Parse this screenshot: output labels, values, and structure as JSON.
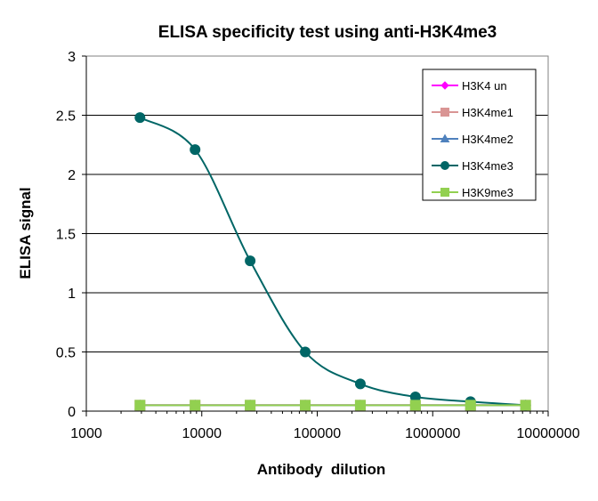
{
  "chart_data": {
    "type": "line",
    "title": "ELISA specificity test using anti-H3K4me3",
    "xlabel": "Antibody  dilution",
    "ylabel": "ELISA signal",
    "x_scale": "log",
    "xlim": [
      1000,
      10000000
    ],
    "ylim": [
      0,
      3
    ],
    "x_ticks": [
      "1000",
      "10000",
      "100000",
      "1000000",
      "10000000"
    ],
    "y_ticks": [
      "0",
      "0.5",
      "1",
      "1.5",
      "2",
      "2.5",
      "3"
    ],
    "grid": "horizontal",
    "legend_position": "top-right",
    "x": [
      2916,
      8748,
      26244,
      78732,
      236196,
      708588,
      2125764,
      6377292
    ],
    "series": [
      {
        "name": "H3K4 un",
        "color": "#ff00ff",
        "marker": "diamond",
        "values": [
          0.05,
          0.05,
          0.05,
          0.05,
          0.05,
          0.05,
          0.05,
          0.05
        ]
      },
      {
        "name": "H3K4me1",
        "color": "#d99594",
        "marker": "square",
        "values": [
          0.05,
          0.05,
          0.05,
          0.05,
          0.05,
          0.05,
          0.05,
          0.05
        ]
      },
      {
        "name": "H3K4me2",
        "color": "#4f81bd",
        "marker": "triangle",
        "values": [
          0.05,
          0.05,
          0.05,
          0.05,
          0.05,
          0.05,
          0.05,
          0.05
        ]
      },
      {
        "name": "H3K4me3",
        "color": "#006666",
        "marker": "circle",
        "values": [
          2.48,
          2.21,
          1.27,
          0.5,
          0.23,
          0.12,
          0.08,
          0.05
        ]
      },
      {
        "name": "H3K9me3",
        "color": "#92d050",
        "marker": "square",
        "values": [
          0.05,
          0.05,
          0.05,
          0.05,
          0.05,
          0.05,
          0.05,
          0.05
        ]
      }
    ]
  }
}
